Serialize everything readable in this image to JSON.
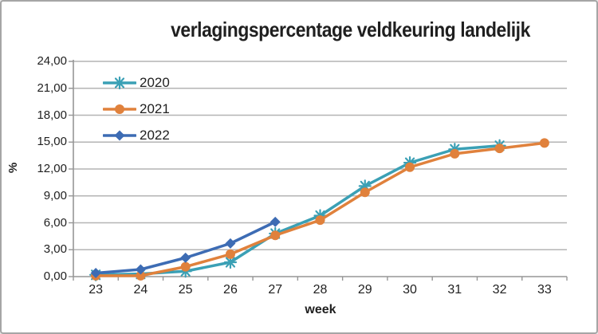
{
  "window": {
    "background": "#ffffff",
    "border_color": "#a6a6a6"
  },
  "chart_data": {
    "type": "line",
    "title": "verlagingspercentage veldkeuring landelijk",
    "xlabel": "week",
    "ylabel": "%",
    "categories": [
      23,
      24,
      25,
      26,
      27,
      28,
      29,
      30,
      31,
      32,
      33
    ],
    "y_tick_labels": [
      "24,00",
      "21,00",
      "18,00",
      "15,00",
      "12,00",
      "9,00",
      "6,00",
      "3,00",
      "0,00"
    ],
    "ylim": [
      0,
      24
    ],
    "y_tick_step": 3,
    "grid": true,
    "legend_position": "top-left-inside",
    "axis_color": "#969696",
    "gridline_color": "#b4b4b4",
    "text_color": "#1f1f1f",
    "series": [
      {
        "name": "2020",
        "color": "#3ba0b5",
        "marker": "asterisk",
        "values": [
          0.2,
          0.3,
          0.6,
          1.6,
          4.8,
          6.8,
          10.1,
          12.7,
          14.2,
          14.6,
          null
        ]
      },
      {
        "name": "2021",
        "color": "#e0813c",
        "marker": "circle",
        "values": [
          0.1,
          0.1,
          1.1,
          2.5,
          4.6,
          6.3,
          9.4,
          12.2,
          13.7,
          14.3,
          14.9
        ]
      },
      {
        "name": "2022",
        "color": "#3d6cb4",
        "marker": "diamond",
        "values": [
          0.4,
          0.8,
          2.1,
          3.7,
          6.1,
          null,
          null,
          null,
          null,
          null,
          null
        ]
      }
    ]
  }
}
